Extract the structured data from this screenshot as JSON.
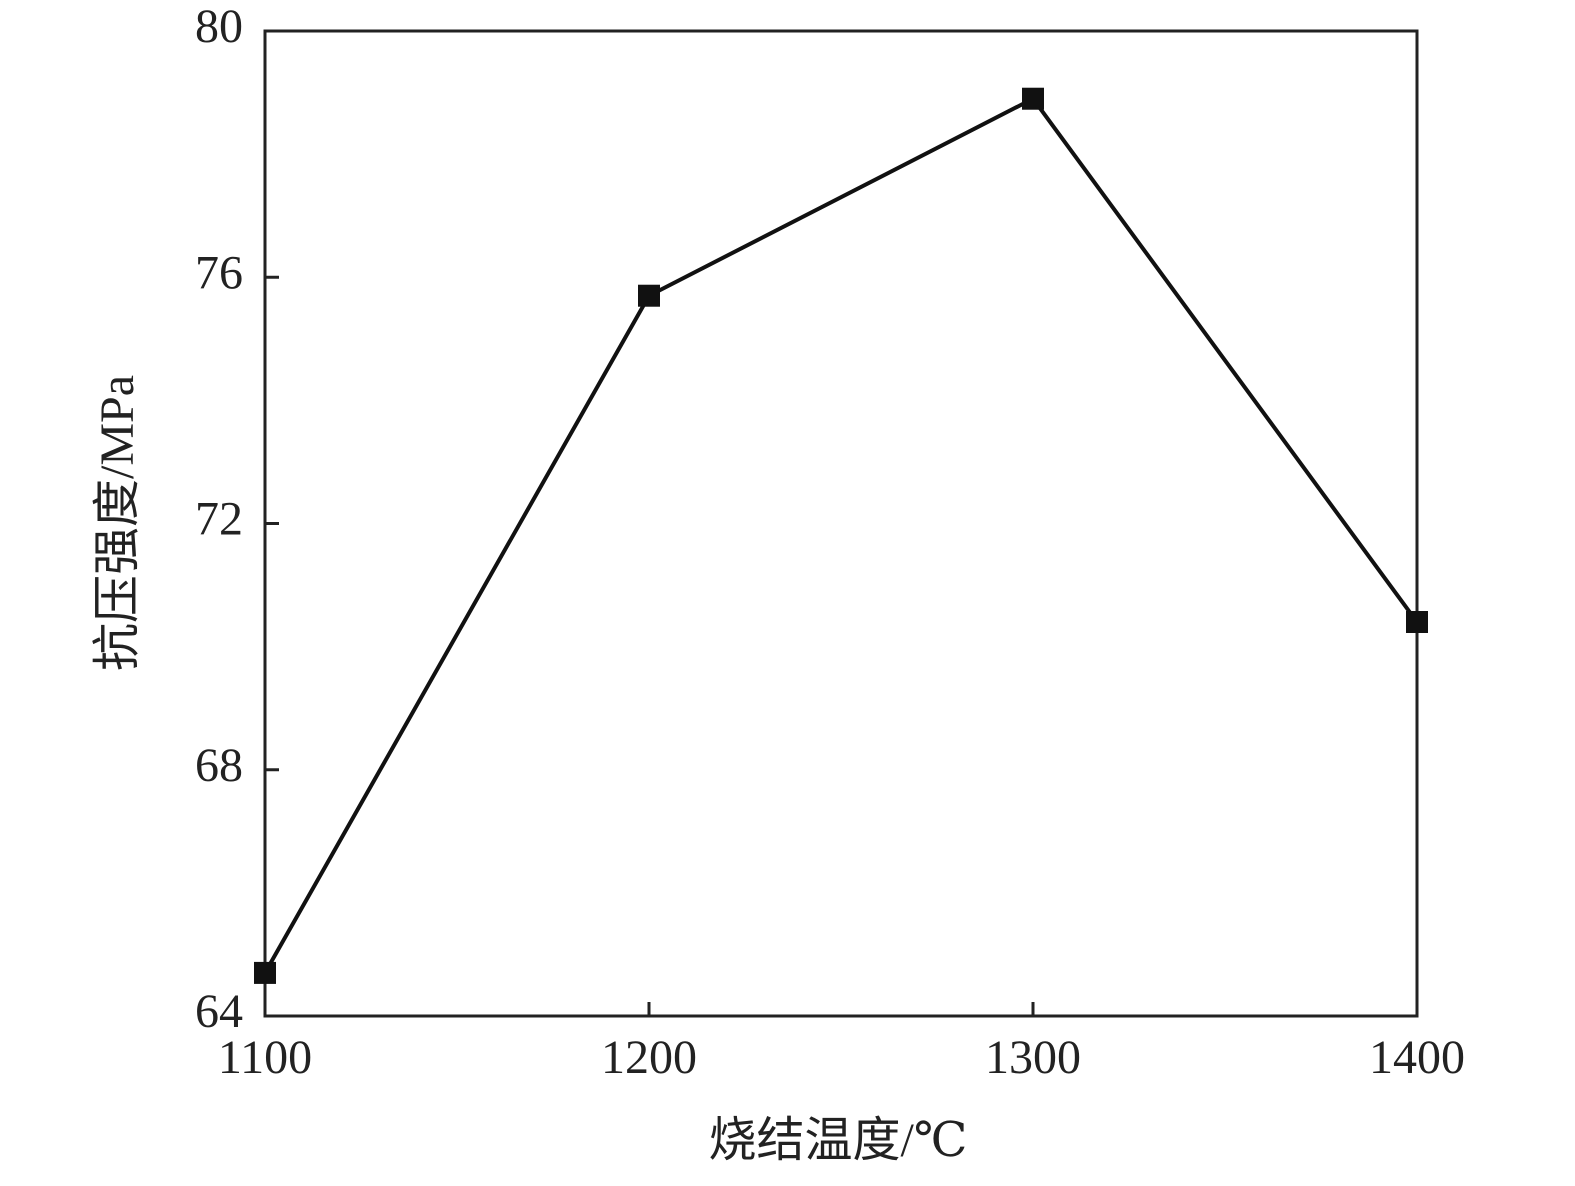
{
  "chart_data": {
    "type": "line",
    "x_label": "烧结温度/℃",
    "y_label": "抗压强度/MPa",
    "x": [
      1100,
      1200,
      1300,
      1400
    ],
    "series": [
      {
        "color": "#111111",
        "values": [
          64.7,
          75.7,
          78.9,
          70.4
        ]
      }
    ],
    "xlim": [
      1100,
      1400
    ],
    "xticks": [
      1100,
      1200,
      1300,
      1400
    ],
    "ylim": [
      64,
      80
    ],
    "yticks": [
      64,
      68,
      72,
      76,
      80
    ]
  }
}
